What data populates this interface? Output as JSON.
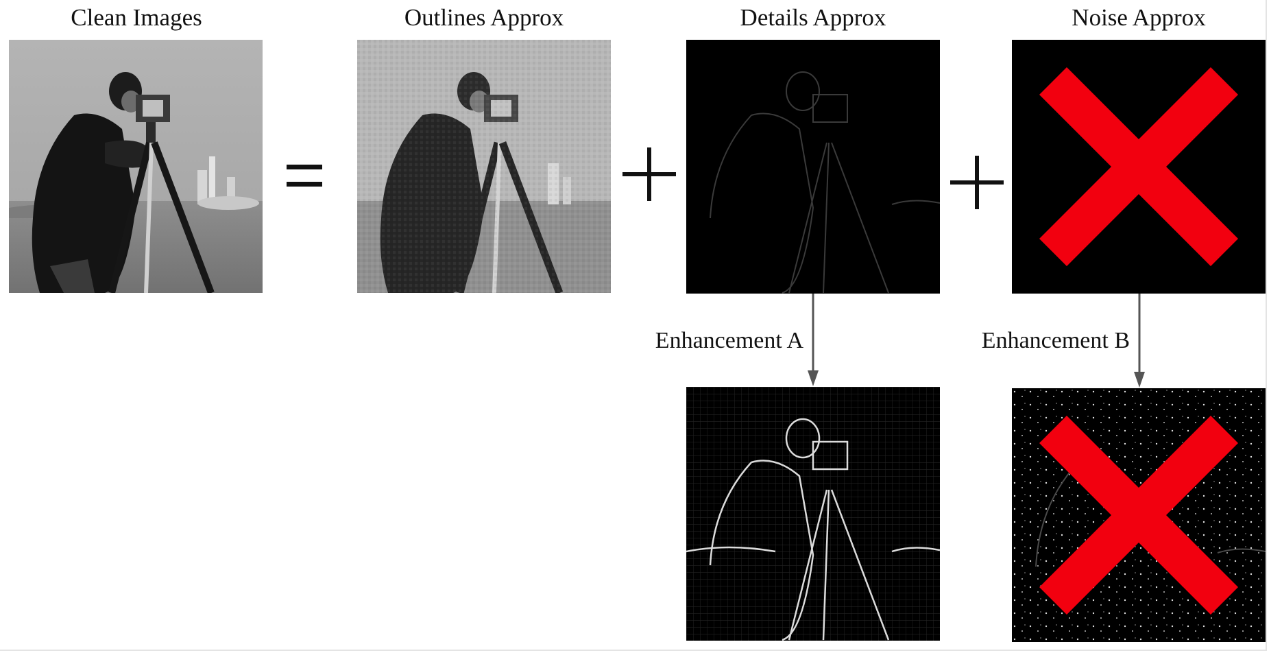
{
  "titles": {
    "clean": "Clean Images",
    "outlines": "Outlines Approx",
    "details": "Details Approx",
    "noise": "Noise Approx"
  },
  "operators": {
    "equals": "=",
    "plus": "+"
  },
  "enhancements": {
    "a": "Enhancement A",
    "b": "Enhancement B"
  },
  "colors": {
    "cross": "#f2000f",
    "arrow": "#555555",
    "panel_dark": "#000000",
    "photo_sky": "#a9a9a9",
    "photo_grass": "#8a8a8a"
  },
  "icons": {
    "cross": "red-x-icon",
    "arrow": "arrow-down-icon"
  }
}
